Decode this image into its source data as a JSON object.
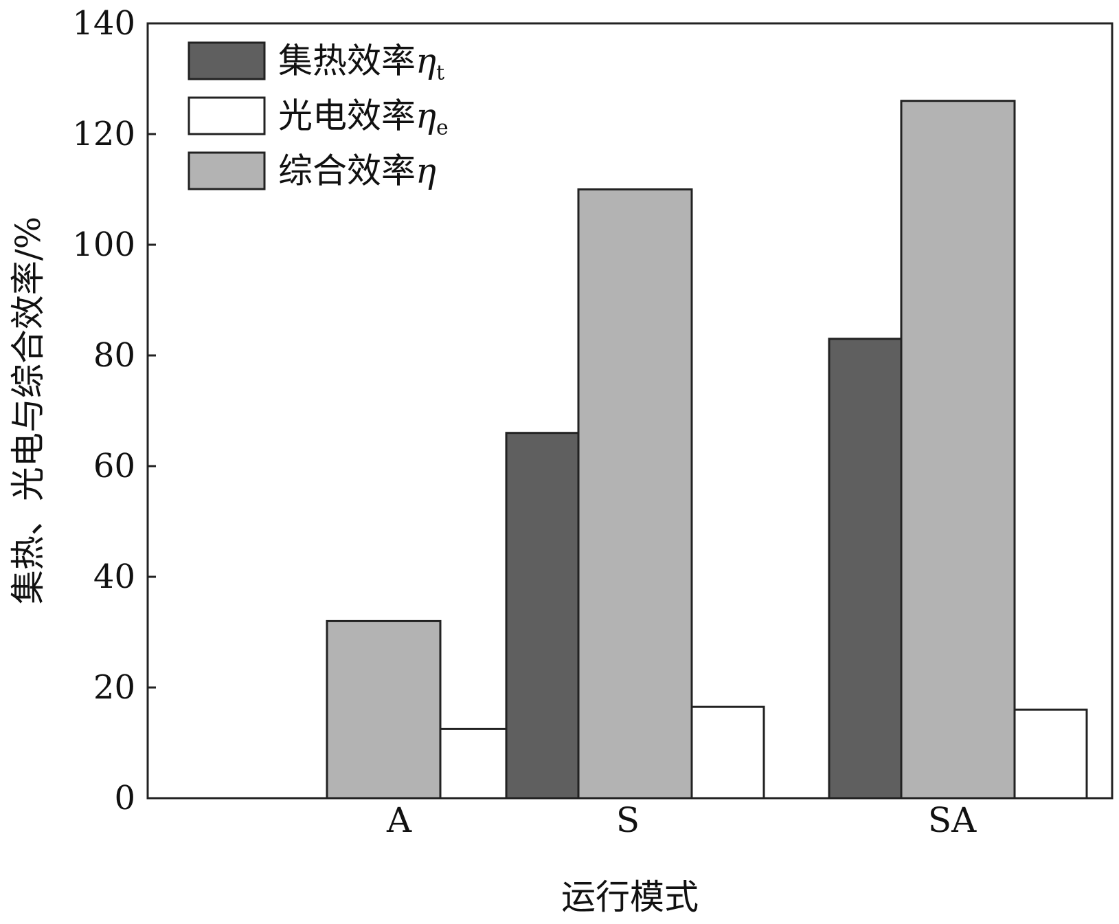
{
  "chart_data": {
    "type": "bar",
    "xlabel": "运行模式",
    "ylabel": "集热、光电与综合效率/%",
    "ylim": [
      0,
      140
    ],
    "yticks": [
      0,
      20,
      40,
      60,
      80,
      100,
      120,
      140
    ],
    "categories": [
      "A",
      "S",
      "SA"
    ],
    "series": [
      {
        "name": "集热效率",
        "symbol": "η",
        "subscript": "t",
        "color": "#5f5f5f",
        "values": [
          null,
          66,
          83
        ]
      },
      {
        "name": "综合效率",
        "symbol": "η",
        "subscript": "",
        "color": "#b3b3b3",
        "values": [
          32,
          110,
          126
        ]
      },
      {
        "name": "光电效率",
        "symbol": "η",
        "subscript": "e",
        "color": "#ffffff",
        "values": [
          12.5,
          16.5,
          16
        ]
      }
    ],
    "legend_order": [
      0,
      2,
      1
    ],
    "legend_position": "top-left",
    "grid": false,
    "bar_outline": "#222222"
  }
}
